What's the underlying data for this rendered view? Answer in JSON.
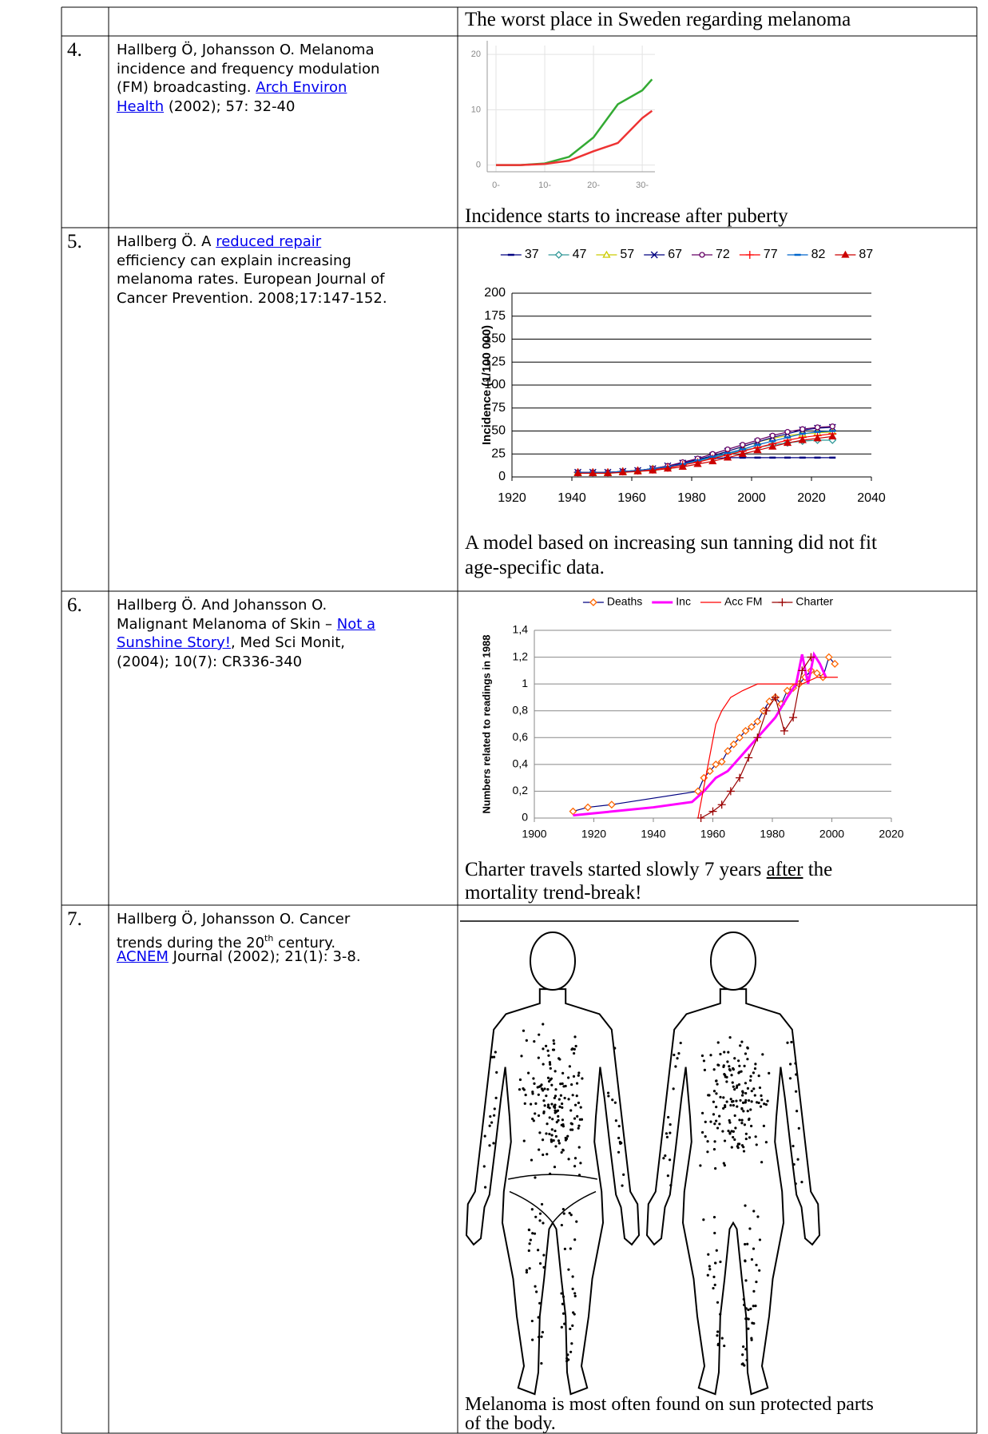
{
  "table": {
    "rows": [
      {
        "caption": [
          [
            {
              "text": "The worst place in Sweden regarding melanoma"
            }
          ]
        ]
      },
      {
        "number": "4.",
        "reference": [
          [
            {
              "text": "Hallberg Ö, Johansson O. Melanoma"
            }
          ],
          [
            {
              "text": "incidence and frequency modulation"
            }
          ],
          [
            {
              "text": "(FM) broadcasting. "
            },
            {
              "text": "Arch Environ",
              "style": "link"
            }
          ],
          [
            {
              "text": "Health",
              "style": "link"
            },
            {
              "text": " (2002); 57: 32-40"
            }
          ]
        ],
        "caption": [
          [
            {
              "text": "Incidence starts to increase after puberty"
            }
          ]
        ]
      },
      {
        "number": "5.",
        "reference": [
          [
            {
              "text": "Hallberg Ö. A "
            },
            {
              "text": "reduced repair",
              "style": "link"
            }
          ],
          [
            {
              "text": "efficiency can explain increasing"
            }
          ],
          [
            {
              "text": "melanoma rates. European Journal of"
            }
          ],
          [
            {
              "text": "Cancer Prevention. 2008;17:147-152."
            }
          ]
        ],
        "caption": [
          [
            {
              "text": "A model based on increasing sun tanning did not fit"
            }
          ],
          [
            {
              "text": "age-specific data."
            }
          ]
        ]
      },
      {
        "number": "6.",
        "reference": [
          [
            {
              "text": "Hallberg Ö. And Johansson O."
            }
          ],
          [
            {
              "text": "Malignant Melanoma of Skin – "
            },
            {
              "text": "Not a",
              "style": "link"
            }
          ],
          [
            {
              "text": "Sunshine Story!",
              "style": "link"
            },
            {
              "text": ", Med Sci Monit,"
            }
          ],
          [
            {
              "text": "(2004); 10(7): CR336-340"
            }
          ]
        ],
        "caption": [
          [
            {
              "text": "Charter travels started slowly 7 years "
            },
            {
              "text": "after",
              "style": "underline"
            },
            {
              "text": " the"
            }
          ],
          [
            {
              "text": "mortality trend-break!"
            }
          ]
        ]
      },
      {
        "number": "7.",
        "reference": [
          [
            {
              "text": "Hallberg Ö, Johansson O. Cancer"
            }
          ],
          [
            {
              "text": "trends during the 20"
            },
            {
              "text": "th",
              "style": "sup"
            },
            {
              "text": " century."
            }
          ],
          [
            {
              "text": "ACNEM",
              "style": "link"
            },
            {
              "text": " Journal (2002); 21(1): 3-8."
            }
          ]
        ],
        "caption": [
          [
            {
              "text": "Melanoma is most often found on sun protected parts"
            }
          ],
          [
            {
              "text": "of the body."
            }
          ]
        ]
      }
    ]
  },
  "chart_data": [
    {
      "type": "line",
      "x": [
        0,
        5,
        10,
        15,
        20,
        25,
        30,
        32
      ],
      "xlim": [
        -1.8,
        32.6
      ],
      "ylim": [
        -1.2,
        21.6
      ],
      "xticks": [
        {
          "value": 0,
          "label": "0-"
        },
        {
          "value": 10,
          "label": "10-"
        },
        {
          "value": 20,
          "label": "20-"
        },
        {
          "value": 30,
          "label": "30-"
        }
      ],
      "yticks": [
        0,
        10,
        20
      ],
      "grid": true,
      "series": [
        {
          "color": "#33aa33",
          "values": [
            0,
            0,
            0.3,
            1.5,
            5,
            11,
            13.5,
            15.5
          ]
        },
        {
          "color": "#ee3333",
          "values": [
            0,
            0,
            0.2,
            0.8,
            2.5,
            4,
            8.5,
            9.8
          ]
        }
      ]
    },
    {
      "type": "line",
      "x": [
        1942,
        1947,
        1952,
        1957,
        1962,
        1967,
        1972,
        1977,
        1982,
        1987,
        1992,
        1997,
        2002,
        2007,
        2012,
        2017,
        2022,
        2027
      ],
      "xlim": [
        1920,
        2040
      ],
      "xticks": [
        1920,
        1940,
        1960,
        1980,
        2000,
        2020,
        2040
      ],
      "ylim": [
        0,
        200
      ],
      "yticks": [
        0,
        25,
        50,
        75,
        100,
        125,
        150,
        175,
        200
      ],
      "y_label": "Incidence (1/100 000)",
      "grid": true,
      "legend": "top",
      "series": [
        {
          "name": "37",
          "color": "#000080",
          "marker": "dash",
          "values": [
            5,
            5,
            5,
            6,
            7,
            9,
            11,
            14,
            17,
            20,
            21,
            21,
            21,
            21,
            21,
            21,
            21,
            21
          ]
        },
        {
          "name": "47",
          "color": "#339999",
          "marker": "diamond",
          "values": [
            5,
            5,
            5,
            6,
            7,
            9,
            11,
            14,
            17,
            21,
            25,
            29,
            32,
            35,
            37,
            39,
            40,
            40
          ]
        },
        {
          "name": "57",
          "color": "#cccc00",
          "marker": "triangle",
          "values": [
            5,
            5,
            5,
            6,
            7,
            9,
            11,
            15,
            19,
            23,
            28,
            33,
            38,
            42,
            45,
            47,
            48,
            49
          ]
        },
        {
          "name": "67",
          "color": "#000080",
          "marker": "x",
          "values": [
            5,
            5,
            5,
            6,
            7,
            9,
            12,
            15,
            19,
            23,
            28,
            33,
            38,
            43,
            47,
            51,
            53,
            54
          ]
        },
        {
          "name": "72",
          "color": "#660066",
          "marker": "circle",
          "values": [
            5,
            5,
            5,
            6,
            7,
            9,
            12,
            16,
            20,
            25,
            30,
            35,
            40,
            45,
            49,
            52,
            54,
            55
          ]
        },
        {
          "name": "77",
          "color": "#ff0000",
          "marker": "plus",
          "values": [
            5,
            5,
            5,
            6,
            7,
            8,
            10,
            13,
            16,
            20,
            24,
            28,
            32,
            36,
            40,
            43,
            45,
            47
          ]
        },
        {
          "name": "82",
          "color": "#0066cc",
          "marker": "dash",
          "values": [
            5,
            5,
            5,
            6,
            7,
            9,
            11,
            14,
            18,
            22,
            26,
            30,
            35,
            39,
            43,
            47,
            49,
            50
          ]
        },
        {
          "name": "87",
          "color": "#cc0000",
          "marker": "triangle",
          "marker_fill": true,
          "values": [
            4,
            4,
            4,
            5,
            6,
            7,
            9,
            11,
            14,
            17,
            21,
            25,
            29,
            33,
            37,
            40,
            42,
            44
          ]
        }
      ]
    },
    {
      "type": "line",
      "xlim": [
        1900,
        2020
      ],
      "xticks": [
        1900,
        1920,
        1940,
        1960,
        1980,
        2000,
        2020
      ],
      "ylim": [
        0,
        1.4
      ],
      "yticks": [
        0,
        {
          "value": 0.2,
          "label": "0,2"
        },
        {
          "value": 0.4,
          "label": "0,4"
        },
        {
          "value": 0.6,
          "label": "0,6"
        },
        {
          "value": 0.8,
          "label": "0,8"
        },
        1,
        {
          "value": 1.2,
          "label": "1,2"
        },
        {
          "value": 1.4,
          "label": "1,4"
        }
      ],
      "y_label": "Numbers related to readings in 1988",
      "grid": true,
      "legend": "top",
      "series": [
        {
          "name": "Deaths",
          "color": "#000080",
          "marker": "diamond",
          "marker_color": "#ff6600",
          "x": [
            1913,
            1918,
            1926,
            1955,
            1957,
            1959,
            1961,
            1963,
            1965,
            1967,
            1969,
            1971,
            1973,
            1975,
            1977,
            1979,
            1981,
            1983,
            1985,
            1987,
            1989,
            1991,
            1993,
            1995,
            1997,
            1999,
            2001
          ],
          "values": [
            0.05,
            0.08,
            0.1,
            0.2,
            0.3,
            0.35,
            0.4,
            0.42,
            0.5,
            0.55,
            0.6,
            0.65,
            0.68,
            0.72,
            0.8,
            0.87,
            0.9,
            0.85,
            0.95,
            0.97,
            1.0,
            1.05,
            1.1,
            1.08,
            1.05,
            1.2,
            1.15
          ]
        },
        {
          "name": "Inc",
          "color": "#ff00ff",
          "width": 3,
          "x": [
            1913,
            1940,
            1953,
            1957,
            1961,
            1965,
            1969,
            1973,
            1977,
            1981,
            1985,
            1988,
            1990,
            1992,
            1994,
            1996,
            1998
          ],
          "values": [
            0.02,
            0.08,
            0.12,
            0.2,
            0.3,
            0.35,
            0.45,
            0.55,
            0.65,
            0.75,
            0.9,
            1.0,
            1.22,
            1.0,
            1.22,
            1.15,
            1.05
          ]
        },
        {
          "name": "Acc FM",
          "color": "#ff0000",
          "x": [
            1955,
            1958,
            1961,
            1963,
            1966,
            1970,
            1975,
            1980,
            1985,
            1990,
            1995,
            2000,
            2002
          ],
          "values": [
            0,
            0.35,
            0.7,
            0.8,
            0.9,
            0.95,
            1.0,
            1.0,
            1.0,
            1.0,
            1.05,
            1.05,
            1.05
          ]
        },
        {
          "name": "Charter",
          "color": "#990000",
          "marker": "plus",
          "x": [
            1956,
            1960,
            1963,
            1966,
            1969,
            1972,
            1975,
            1978,
            1981,
            1984,
            1987,
            1990,
            1993
          ],
          "values": [
            0,
            0.05,
            0.1,
            0.2,
            0.3,
            0.45,
            0.6,
            0.8,
            0.9,
            0.65,
            0.75,
            1.1,
            1.2
          ]
        }
      ]
    }
  ]
}
